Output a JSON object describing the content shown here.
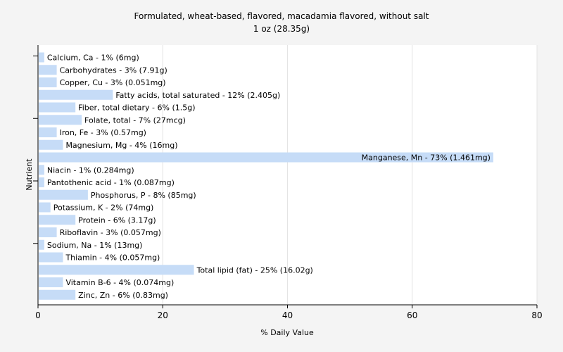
{
  "chart_data": {
    "type": "bar",
    "orientation": "horizontal",
    "title": "Formulated, wheat-based, flavored, macadamia flavored, without salt",
    "subtitle": "1 oz (28.35g)",
    "xlabel": "% Daily Value",
    "ylabel": "Nutrient",
    "xlim": [
      0,
      80
    ],
    "xticks": [
      0,
      20,
      40,
      60,
      80
    ],
    "grid": true,
    "bar_color": "#c6dcf7",
    "categories": [
      "Calcium, Ca",
      "Carbohydrates",
      "Copper, Cu",
      "Fatty acids, total saturated",
      "Fiber, total dietary",
      "Folate, total",
      "Iron, Fe",
      "Magnesium, Mg",
      "Manganese, Mn",
      "Niacin",
      "Pantothenic acid",
      "Phosphorus, P",
      "Potassium, K",
      "Protein",
      "Riboflavin",
      "Sodium, Na",
      "Thiamin",
      "Total lipid (fat)",
      "Vitamin B-6",
      "Zinc, Zn"
    ],
    "values": [
      1,
      3,
      3,
      12,
      6,
      7,
      3,
      4,
      73,
      1,
      1,
      8,
      2,
      6,
      3,
      1,
      4,
      25,
      4,
      6
    ],
    "labels": [
      "Calcium, Ca - 1% (6mg)",
      "Carbohydrates - 3% (7.91g)",
      "Copper, Cu - 3% (0.051mg)",
      "Fatty acids, total saturated - 12% (2.405g)",
      "Fiber, total dietary - 6% (1.5g)",
      "Folate, total - 7% (27mcg)",
      "Iron, Fe - 3% (0.57mg)",
      "Magnesium, Mg - 4% (16mg)",
      "Manganese, Mn - 73% (1.461mg)",
      "Niacin - 1% (0.284mg)",
      "Pantothenic acid - 1% (0.087mg)",
      "Phosphorus, P - 8% (85mg)",
      "Potassium, K - 2% (74mg)",
      "Protein - 6% (3.17g)",
      "Riboflavin - 3% (0.057mg)",
      "Sodium, Na - 1% (13mg)",
      "Thiamin - 4% (0.057mg)",
      "Total lipid (fat) - 25% (16.02g)",
      "Vitamin B-6 - 4% (0.074mg)",
      "Zinc, Zn - 6% (0.83mg)"
    ]
  }
}
